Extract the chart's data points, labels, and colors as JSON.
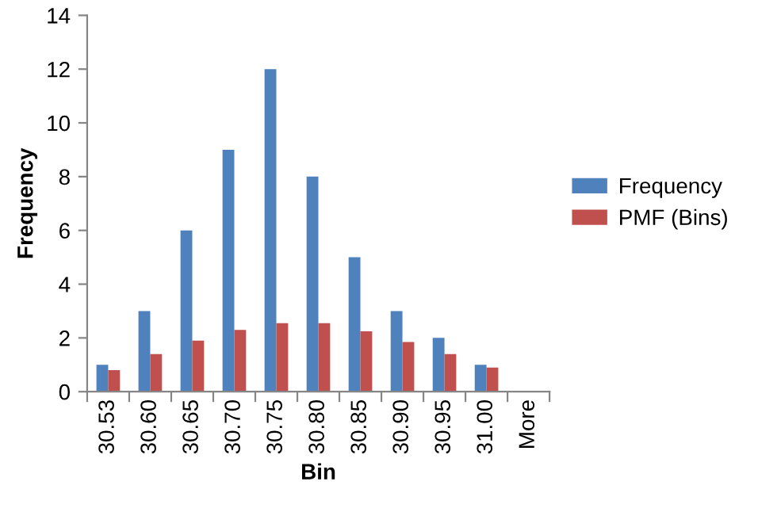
{
  "chart_data": {
    "type": "bar",
    "xlabel": "Bin",
    "ylabel": "Frequency",
    "categories": [
      "30.53",
      "30.60",
      "30.65",
      "30.70",
      "30.75",
      "30.80",
      "30.85",
      "30.90",
      "30.95",
      "31.00",
      "More"
    ],
    "series": [
      {
        "name": "Frequency",
        "color": "#4f81bd",
        "values": [
          1,
          3,
          6,
          9,
          12,
          8,
          5,
          3,
          2,
          1,
          0
        ]
      },
      {
        "name": "PMF (Bins)",
        "color": "#c0504d",
        "values": [
          0.8,
          1.4,
          1.9,
          2.3,
          2.55,
          2.55,
          2.25,
          1.85,
          1.4,
          0.9,
          0
        ]
      }
    ],
    "ylim": [
      0,
      14
    ],
    "yticks": [
      0,
      2,
      4,
      6,
      8,
      10,
      12,
      14
    ],
    "grid": false,
    "legend": "right"
  }
}
